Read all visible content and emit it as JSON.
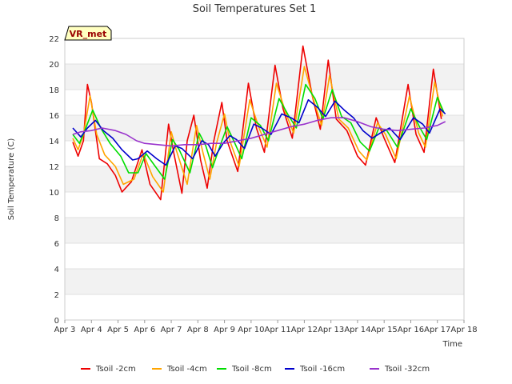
{
  "chart_data": {
    "type": "line",
    "title": "Soil Temperatures Set 1",
    "xlabel": "Time",
    "ylabel": "Soil Temperature (C)",
    "ylim": [
      0,
      22
    ],
    "yticks": [
      0,
      2,
      4,
      6,
      8,
      10,
      12,
      14,
      16,
      18,
      20,
      22
    ],
    "xlim": [
      3,
      18
    ],
    "xtick_labels": [
      "Apr 3",
      "Apr 4",
      "Apr 5",
      "Apr 6",
      "Apr 7",
      "Apr 8",
      "Apr 9",
      "Apr 10",
      "Apr 11",
      "Apr 12",
      "Apr 13",
      "Apr 14",
      "Apr 15",
      "Apr 16",
      "Apr 17",
      "Apr 18"
    ],
    "annotation": "VR_met",
    "grid": "horizontal bands",
    "legend_position": "bottom",
    "series": [
      {
        "name": "Tsoil -2cm",
        "color": "#ee0000",
        "points": [
          [
            3.3,
            13.9
          ],
          [
            3.5,
            12.8
          ],
          [
            3.7,
            14.0
          ],
          [
            3.85,
            18.4
          ],
          [
            4.0,
            17.0
          ],
          [
            4.3,
            12.6
          ],
          [
            4.6,
            12.2
          ],
          [
            4.9,
            11.3
          ],
          [
            5.15,
            10.0
          ],
          [
            5.5,
            10.8
          ],
          [
            5.9,
            13.3
          ],
          [
            6.2,
            10.6
          ],
          [
            6.6,
            9.4
          ],
          [
            6.9,
            15.3
          ],
          [
            7.1,
            13.0
          ],
          [
            7.4,
            9.9
          ],
          [
            7.6,
            14.0
          ],
          [
            7.85,
            16.0
          ],
          [
            8.1,
            12.5
          ],
          [
            8.35,
            10.3
          ],
          [
            8.6,
            14.0
          ],
          [
            8.9,
            17.0
          ],
          [
            9.1,
            14.0
          ],
          [
            9.5,
            11.6
          ],
          [
            9.9,
            18.5
          ],
          [
            10.2,
            15.0
          ],
          [
            10.5,
            13.1
          ],
          [
            10.9,
            19.9
          ],
          [
            11.2,
            16.5
          ],
          [
            11.55,
            14.2
          ],
          [
            11.95,
            21.4
          ],
          [
            12.3,
            17.5
          ],
          [
            12.6,
            14.9
          ],
          [
            12.9,
            20.3
          ],
          [
            13.2,
            15.7
          ],
          [
            13.6,
            14.8
          ],
          [
            14.0,
            12.8
          ],
          [
            14.3,
            12.1
          ],
          [
            14.7,
            15.8
          ],
          [
            15.0,
            14.2
          ],
          [
            15.4,
            12.3
          ],
          [
            15.9,
            18.4
          ],
          [
            16.2,
            14.5
          ],
          [
            16.5,
            13.1
          ],
          [
            16.85,
            19.6
          ],
          [
            17.15,
            15.7
          ]
        ]
      },
      {
        "name": "Tsoil -4cm",
        "color": "#ffa500",
        "points": [
          [
            3.3,
            14.2
          ],
          [
            3.5,
            13.3
          ],
          [
            3.7,
            14.5
          ],
          [
            3.95,
            17.5
          ],
          [
            4.2,
            14.5
          ],
          [
            4.5,
            12.9
          ],
          [
            4.9,
            12.0
          ],
          [
            5.2,
            10.6
          ],
          [
            5.6,
            11.0
          ],
          [
            5.95,
            13.0
          ],
          [
            6.3,
            11.2
          ],
          [
            6.7,
            10.0
          ],
          [
            7.0,
            14.7
          ],
          [
            7.2,
            13.2
          ],
          [
            7.6,
            10.6
          ],
          [
            7.95,
            15.2
          ],
          [
            8.2,
            13.0
          ],
          [
            8.45,
            11.0
          ],
          [
            8.7,
            13.8
          ],
          [
            9.0,
            16.1
          ],
          [
            9.2,
            14.0
          ],
          [
            9.55,
            12.0
          ],
          [
            9.95,
            17.2
          ],
          [
            10.3,
            15.0
          ],
          [
            10.6,
            13.5
          ],
          [
            10.95,
            18.5
          ],
          [
            11.3,
            16.2
          ],
          [
            11.6,
            14.6
          ],
          [
            12.0,
            19.8
          ],
          [
            12.35,
            17.2
          ],
          [
            12.65,
            15.2
          ],
          [
            12.95,
            19.1
          ],
          [
            13.3,
            15.7
          ],
          [
            13.65,
            15.0
          ],
          [
            14.05,
            13.2
          ],
          [
            14.35,
            12.5
          ],
          [
            14.75,
            15.4
          ],
          [
            15.05,
            14.5
          ],
          [
            15.45,
            12.6
          ],
          [
            15.95,
            17.5
          ],
          [
            16.3,
            14.6
          ],
          [
            16.55,
            13.5
          ],
          [
            16.9,
            18.6
          ],
          [
            17.2,
            15.9
          ]
        ]
      },
      {
        "name": "Tsoil -8cm",
        "color": "#00dd00",
        "points": [
          [
            3.3,
            14.5
          ],
          [
            3.55,
            13.8
          ],
          [
            3.75,
            14.8
          ],
          [
            4.05,
            16.4
          ],
          [
            4.35,
            15.0
          ],
          [
            4.7,
            13.8
          ],
          [
            5.1,
            12.8
          ],
          [
            5.4,
            11.5
          ],
          [
            5.75,
            11.5
          ],
          [
            6.05,
            13.0
          ],
          [
            6.4,
            12.0
          ],
          [
            6.75,
            11.0
          ],
          [
            7.05,
            14.1
          ],
          [
            7.3,
            13.3
          ],
          [
            7.7,
            11.5
          ],
          [
            8.05,
            14.6
          ],
          [
            8.3,
            13.6
          ],
          [
            8.55,
            11.9
          ],
          [
            8.85,
            13.7
          ],
          [
            9.1,
            15.1
          ],
          [
            9.35,
            14.0
          ],
          [
            9.65,
            12.6
          ],
          [
            10.0,
            15.8
          ],
          [
            10.35,
            15.2
          ],
          [
            10.65,
            14.0
          ],
          [
            11.05,
            17.3
          ],
          [
            11.4,
            16.0
          ],
          [
            11.7,
            15.0
          ],
          [
            12.05,
            18.4
          ],
          [
            12.4,
            17.3
          ],
          [
            12.7,
            15.7
          ],
          [
            13.05,
            18.0
          ],
          [
            13.4,
            15.9
          ],
          [
            13.75,
            15.4
          ],
          [
            14.1,
            13.9
          ],
          [
            14.45,
            13.2
          ],
          [
            14.8,
            15.0
          ],
          [
            15.1,
            14.8
          ],
          [
            15.5,
            13.5
          ],
          [
            16.0,
            16.5
          ],
          [
            16.35,
            15.0
          ],
          [
            16.6,
            14.1
          ],
          [
            17.0,
            17.4
          ],
          [
            17.25,
            16.2
          ]
        ]
      },
      {
        "name": "Tsoil -16cm",
        "color": "#0000cc",
        "points": [
          [
            3.3,
            15.0
          ],
          [
            3.6,
            14.3
          ],
          [
            3.85,
            15.0
          ],
          [
            4.15,
            15.6
          ],
          [
            4.45,
            14.8
          ],
          [
            4.8,
            14.2
          ],
          [
            5.15,
            13.3
          ],
          [
            5.55,
            12.5
          ],
          [
            5.75,
            12.6
          ],
          [
            6.1,
            13.2
          ],
          [
            6.45,
            12.6
          ],
          [
            6.8,
            12.1
          ],
          [
            7.15,
            13.6
          ],
          [
            7.4,
            13.4
          ],
          [
            7.8,
            12.6
          ],
          [
            8.15,
            14.0
          ],
          [
            8.4,
            13.7
          ],
          [
            8.65,
            12.8
          ],
          [
            8.95,
            13.8
          ],
          [
            9.2,
            14.4
          ],
          [
            9.45,
            14.1
          ],
          [
            9.75,
            13.4
          ],
          [
            10.1,
            15.3
          ],
          [
            10.4,
            15.0
          ],
          [
            10.75,
            14.5
          ],
          [
            11.15,
            16.1
          ],
          [
            11.5,
            15.8
          ],
          [
            11.8,
            15.4
          ],
          [
            12.15,
            17.2
          ],
          [
            12.5,
            16.6
          ],
          [
            12.8,
            15.9
          ],
          [
            13.15,
            17.1
          ],
          [
            13.5,
            16.4
          ],
          [
            13.85,
            15.8
          ],
          [
            14.2,
            14.8
          ],
          [
            14.55,
            14.2
          ],
          [
            14.85,
            14.6
          ],
          [
            15.2,
            15.0
          ],
          [
            15.6,
            14.1
          ],
          [
            16.1,
            15.8
          ],
          [
            16.45,
            15.3
          ],
          [
            16.7,
            14.6
          ],
          [
            17.1,
            16.5
          ],
          [
            17.3,
            16.1
          ]
        ]
      },
      {
        "name": "Tsoil -32cm",
        "color": "#9933cc",
        "points": [
          [
            3.3,
            14.5
          ],
          [
            3.6,
            14.7
          ],
          [
            4.0,
            14.8
          ],
          [
            4.4,
            15.0
          ],
          [
            4.9,
            14.8
          ],
          [
            5.3,
            14.5
          ],
          [
            5.7,
            14.0
          ],
          [
            6.0,
            13.8
          ],
          [
            6.5,
            13.7
          ],
          [
            7.0,
            13.6
          ],
          [
            7.5,
            13.7
          ],
          [
            8.0,
            13.7
          ],
          [
            8.5,
            13.8
          ],
          [
            9.0,
            13.8
          ],
          [
            9.5,
            14.0
          ],
          [
            10.0,
            14.2
          ],
          [
            10.5,
            14.5
          ],
          [
            11.0,
            14.8
          ],
          [
            11.5,
            15.1
          ],
          [
            12.0,
            15.3
          ],
          [
            12.5,
            15.6
          ],
          [
            13.0,
            15.8
          ],
          [
            13.5,
            15.8
          ],
          [
            14.0,
            15.5
          ],
          [
            14.5,
            15.1
          ],
          [
            15.0,
            14.9
          ],
          [
            15.5,
            14.8
          ],
          [
            16.0,
            14.9
          ],
          [
            16.5,
            15.0
          ],
          [
            17.0,
            15.2
          ],
          [
            17.3,
            15.5
          ]
        ]
      }
    ]
  }
}
